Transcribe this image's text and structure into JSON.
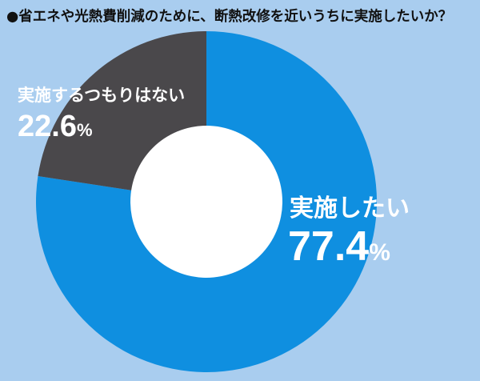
{
  "chart_data": {
    "type": "pie",
    "title": "●省エネや光熱費削減のために、断熱改修を近いうちに実施したいか？",
    "categories": [
      "実施したい",
      "実施するつもりはない"
    ],
    "values": [
      77.4,
      22.6
    ],
    "value_labels": [
      "77.4",
      "22.6"
    ],
    "unit": "%",
    "colors": [
      "#0f8fe0",
      "#4a484b"
    ],
    "hole_color": "#ffffff",
    "background": "#a9cdef",
    "donut": true
  }
}
